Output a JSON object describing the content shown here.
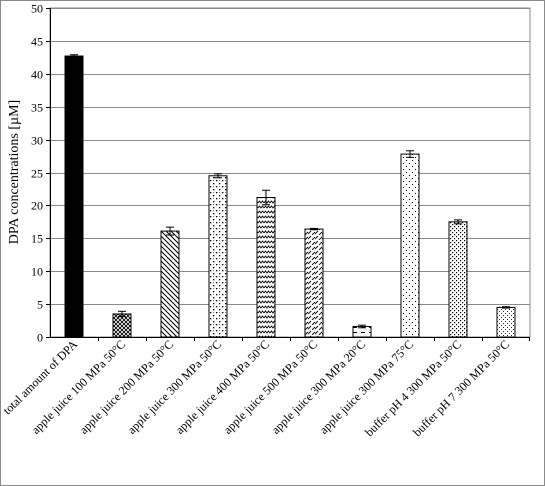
{
  "chart_data": {
    "type": "bar",
    "ylabel": "DPA concentrations  [µM]",
    "ylim": [
      0,
      50
    ],
    "yticks": [
      0,
      5,
      10,
      15,
      20,
      25,
      30,
      35,
      40,
      45,
      50
    ],
    "grid": true,
    "legend": "none",
    "categories": [
      "total amount of DPA",
      "apple juice  100 MPa 50°C",
      "apple juice  200 MPa 50°C",
      "apple juice  300 MPa 50°C",
      "apple juice  400 MPa 50°C",
      "apple juice  500 MPa 50°C",
      "apple juice  300 MPa 20°C",
      "apple juice  300 MPa 75°C",
      "buffer pH 4  300 MPa 50°C",
      "buffer pH 7  300 MPa 50°C"
    ],
    "values": [
      42.7,
      3.5,
      16.1,
      24.5,
      21.2,
      16.4,
      1.6,
      27.8,
      17.5,
      4.5
    ],
    "errors": [
      0.2,
      0.4,
      0.6,
      0.3,
      1.1,
      0.1,
      0.2,
      0.5,
      0.3,
      0.1
    ],
    "patterns": [
      "solid",
      "crosshatch",
      "diag-down",
      "dots-cross",
      "zigzag",
      "dash-diag",
      "dash",
      "dots-sparse",
      "dots-dense",
      "dots-fine"
    ]
  }
}
